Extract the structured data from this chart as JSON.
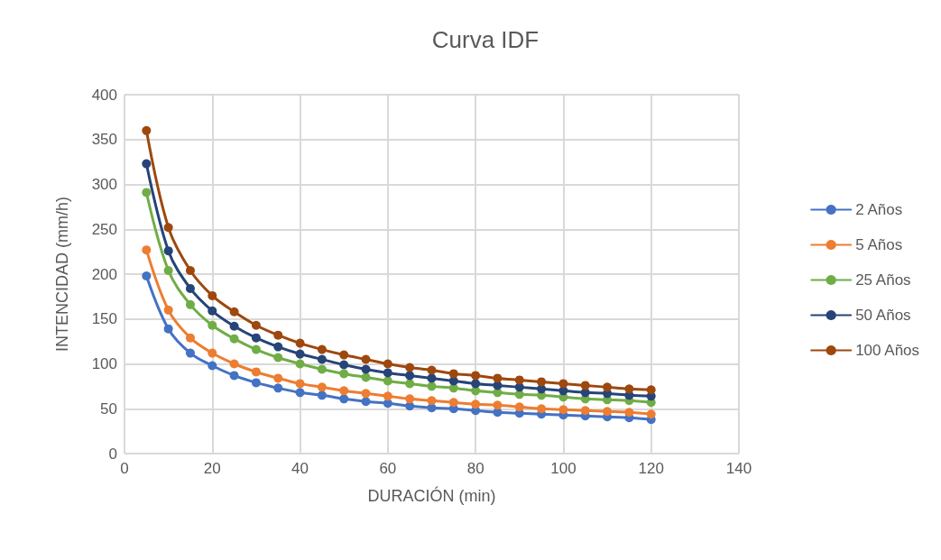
{
  "chart_data": {
    "type": "line",
    "title": "Curva IDF",
    "xlabel": "DURACIÓN (min)",
    "ylabel": "INTENCIDAD (mm/h)",
    "x": [
      5,
      10,
      15,
      20,
      25,
      30,
      35,
      40,
      45,
      50,
      55,
      60,
      65,
      70,
      75,
      80,
      85,
      90,
      95,
      100,
      105,
      110,
      115,
      120
    ],
    "series": [
      {
        "name": "2 Años",
        "color": "#4472c4",
        "values": [
          198,
          139,
          112,
          98,
          87,
          79,
          73,
          68,
          65,
          61,
          58,
          56,
          53,
          51,
          50,
          48,
          46,
          45,
          44,
          43,
          42,
          41,
          40,
          38
        ]
      },
      {
        "name": "5 Años",
        "color": "#ed7d31",
        "values": [
          227,
          160,
          129,
          112,
          100,
          91,
          84,
          78,
          74,
          70,
          67,
          64,
          61,
          59,
          57,
          55,
          54,
          52,
          50,
          49,
          48,
          47,
          46,
          44
        ]
      },
      {
        "name": "25 Años",
        "color": "#70ad47",
        "values": [
          291,
          204,
          166,
          143,
          128,
          116,
          107,
          100,
          94,
          89,
          85,
          81,
          78,
          75,
          73,
          70,
          68,
          66,
          65,
          63,
          61,
          60,
          59,
          57
        ]
      },
      {
        "name": "50 Años",
        "color": "#264478",
        "values": [
          323,
          226,
          184,
          159,
          142,
          129,
          119,
          111,
          105,
          99,
          94,
          90,
          87,
          84,
          81,
          78,
          76,
          74,
          72,
          70,
          68,
          67,
          65,
          64
        ]
      },
      {
        "name": "100 Años",
        "color": "#9e480e",
        "values": [
          360,
          252,
          204,
          176,
          158,
          143,
          132,
          123,
          116,
          110,
          105,
          100,
          96,
          93,
          89,
          87,
          84,
          82,
          80,
          78,
          76,
          74,
          72,
          71
        ]
      }
    ],
    "xlim": [
      0,
      140
    ],
    "xticks": [
      0,
      20,
      40,
      60,
      80,
      100,
      120,
      140
    ],
    "ylim": [
      0,
      400
    ],
    "yticks": [
      0,
      50,
      100,
      150,
      200,
      250,
      300,
      350,
      400
    ],
    "grid": true,
    "legend": "right",
    "marker": "circle",
    "line_style": "solid"
  }
}
